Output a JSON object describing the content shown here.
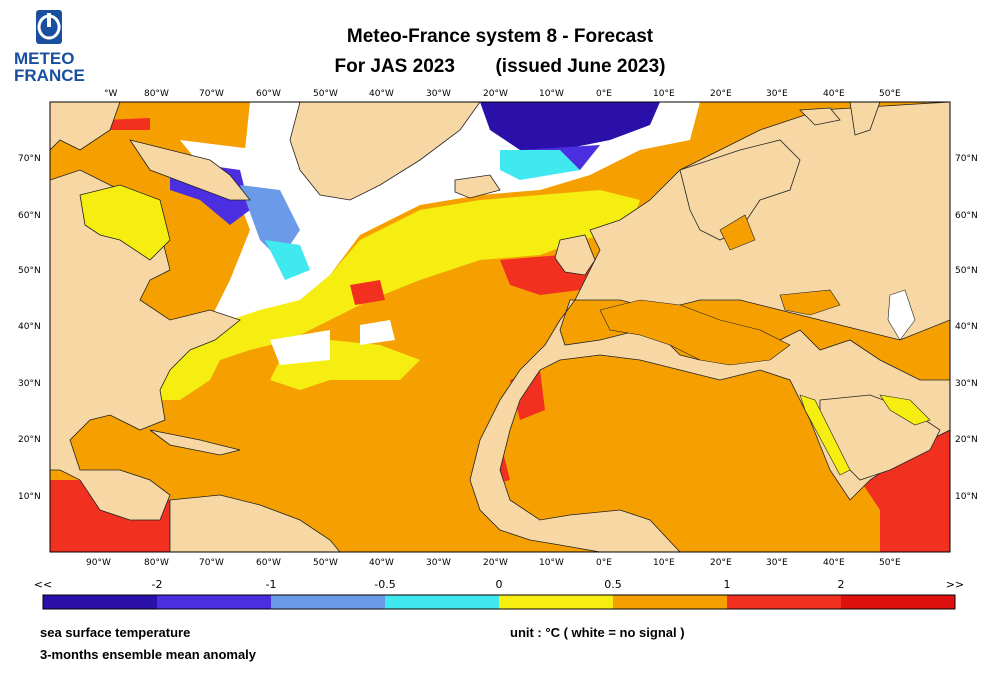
{
  "header": {
    "logo_line1": "METEO",
    "logo_line2": "FRANCE",
    "title_line1": "Meteo-France system 8  -  Forecast",
    "title_period": "For JAS 2023",
    "title_issued": "(issued June 2023)"
  },
  "axes": {
    "top_lon_labels": [
      "°W",
      "80°W",
      "70°W",
      "60°W",
      "50°W",
      "40°W",
      "30°W",
      "20°W",
      "10°W",
      "0°E",
      "10°E",
      "20°E",
      "30°E",
      "40°E",
      "50°E"
    ],
    "bottom_lon_labels": [
      "90°W",
      "80°W",
      "70°W",
      "60°W",
      "50°W",
      "40°W",
      "30°W",
      "20°W",
      "10°W",
      "0°E",
      "10°E",
      "20°E",
      "30°E",
      "40°E",
      "50°E"
    ],
    "lat_labels": [
      "70°N",
      "60°N",
      "50°N",
      "40°N",
      "30°N",
      "20°N",
      "10°N"
    ]
  },
  "colorbar": {
    "labels": [
      "<<",
      "-2",
      "-1",
      "-0.5",
      "0",
      "0.5",
      "1",
      "2",
      ">>"
    ],
    "colors": [
      "#2a10a8",
      "#4a2ee0",
      "#6a9ae8",
      "#40e8f0",
      "#f5ee10",
      "#f5a000",
      "#f23020",
      "#e01010"
    ]
  },
  "footer": {
    "line1": "sea surface temperature",
    "line2": "3-months ensemble mean anomaly",
    "unit": "unit : °C  ( white = no signal )"
  },
  "map_colors": {
    "land": "#f7d8a4",
    "no_signal": "#ffffff",
    "anom_0_05": "#f5ee10",
    "anom_05_1": "#f5a000",
    "anom_1_2": "#f23020",
    "anom_gt2": "#e01010",
    "anom_m05_0": "#40e8f0",
    "anom_m1_m05": "#6a9ae8",
    "anom_m2_m1": "#4a2ee0",
    "anom_lt_m2": "#2a10a8"
  }
}
